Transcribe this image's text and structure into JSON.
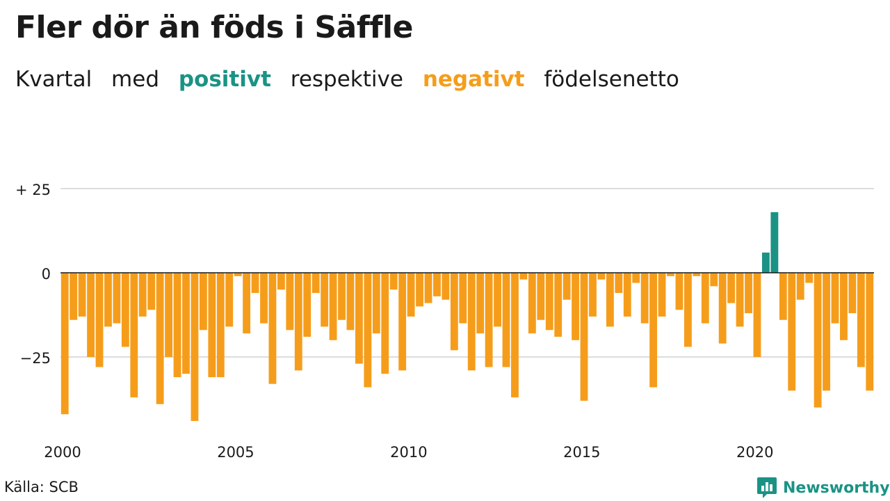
{
  "title": "Fler dör än föds i Säffle",
  "subtitle": {
    "w1": "Kvartal",
    "w2": "med",
    "w3": "positivt",
    "w4": "respektive",
    "w5": "negativt",
    "w6": "födelsenetto"
  },
  "source": "Källa: SCB",
  "brand": {
    "name": "Newsworthy",
    "icon": "bar-chart-speech-bubble-icon"
  },
  "colors": {
    "positive": "#1a9385",
    "negative": "#f59d1b",
    "grid": "#dddddd",
    "axis": "#1a1a1a"
  },
  "chart_data": {
    "type": "bar",
    "x_start": "2000 Q1",
    "period": "quarter",
    "xticks": [
      "2000",
      "2005",
      "2010",
      "2015",
      "2020"
    ],
    "yticks": [
      {
        "value": 25,
        "label": "+ 25"
      },
      {
        "value": 0,
        "label": "0"
      },
      {
        "value": -25,
        "label": "−25"
      }
    ],
    "ylim": [
      -45,
      28
    ],
    "grid": true,
    "values": [
      -42,
      -14,
      -13,
      -25,
      -28,
      -16,
      -15,
      -22,
      -37,
      -13,
      -11,
      -39,
      -25,
      -31,
      -30,
      -44,
      -17,
      -31,
      -31,
      -16,
      -1,
      -18,
      -6,
      -15,
      -33,
      -5,
      -17,
      -29,
      -19,
      -6,
      -16,
      -20,
      -14,
      -17,
      -27,
      -34,
      -18,
      -30,
      -5,
      -29,
      -13,
      -10,
      -9,
      -7,
      -8,
      -23,
      -15,
      -29,
      -18,
      -28,
      -16,
      -28,
      -37,
      -2,
      -18,
      -14,
      -17,
      -19,
      -8,
      -20,
      -38,
      -13,
      -2,
      -16,
      -6,
      -13,
      -3,
      -15,
      -34,
      -13,
      -1,
      -11,
      -22,
      -1,
      -15,
      -4,
      -21,
      -9,
      -16,
      -12,
      -25,
      6,
      18,
      -14,
      -35,
      -8,
      -3,
      -40,
      -35,
      -15,
      -20,
      -12,
      -28,
      -35
    ]
  }
}
